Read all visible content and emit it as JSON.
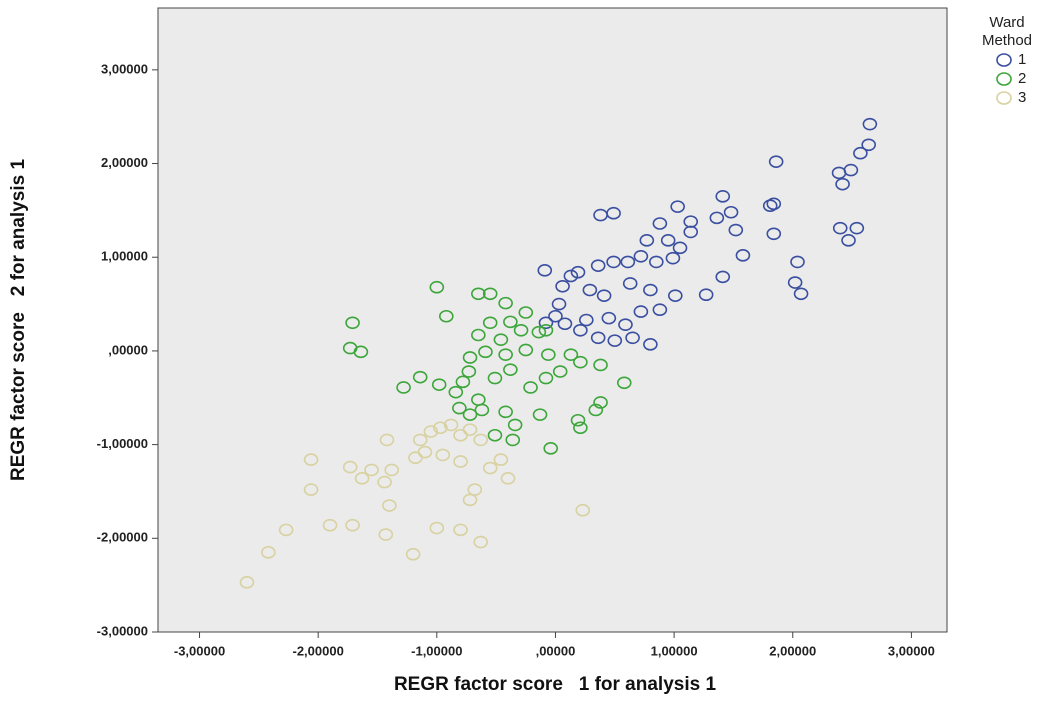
{
  "chart_data": {
    "type": "scatter",
    "x_label": "REGR factor score   1 for analysis 1",
    "y_label": "REGR factor score   2 for analysis 1",
    "legend_title": "Ward Method",
    "legend_position": "right",
    "background": "#ebebeb",
    "xlim": [
      -3.35,
      3.3
    ],
    "ylim": [
      -3.0,
      3.66
    ],
    "xticks": [
      {
        "value": -3,
        "label": "-3,00000"
      },
      {
        "value": -2,
        "label": "-2,00000"
      },
      {
        "value": -1,
        "label": "-1,00000"
      },
      {
        "value": 0,
        "label": ",00000"
      },
      {
        "value": 1,
        "label": "1,00000"
      },
      {
        "value": 2,
        "label": "2,00000"
      },
      {
        "value": 3,
        "label": "3,00000"
      }
    ],
    "yticks": [
      {
        "value": -3,
        "label": "-3,00000"
      },
      {
        "value": -2,
        "label": "-2,00000"
      },
      {
        "value": -1,
        "label": "-1,00000"
      },
      {
        "value": 0,
        "label": ",00000"
      },
      {
        "value": 1,
        "label": "1,00000"
      },
      {
        "value": 2,
        "label": "2,00000"
      },
      {
        "value": 3,
        "label": "3,00000"
      }
    ],
    "series": [
      {
        "name": "1",
        "color": "#3a4fa0",
        "x": [
          2.65,
          2.64,
          2.57,
          2.49,
          2.39,
          2.42,
          1.86,
          1.84,
          1.81,
          1.41,
          1.48,
          1.36,
          1.52,
          1.84,
          2.4,
          2.54,
          2.47,
          2.04,
          2.02,
          2.07,
          1.58,
          1.41,
          1.27,
          1.14,
          1.03,
          0.88,
          0.77,
          0.95,
          1.05,
          0.99,
          0.85,
          0.72,
          0.61,
          0.49,
          0.36,
          0.19,
          0.13,
          -0.09,
          0.38,
          0.49,
          0.63,
          0.8,
          1.01,
          0.41,
          0.29,
          0.06,
          0.03,
          0.0,
          -0.08,
          0.08,
          0.26,
          0.45,
          0.59,
          0.65,
          0.8,
          0.5,
          0.36,
          0.21,
          0.72,
          0.88,
          1.14
        ],
        "values": [
          2.42,
          2.2,
          2.11,
          1.93,
          1.9,
          1.78,
          2.02,
          1.57,
          1.55,
          1.65,
          1.48,
          1.42,
          1.29,
          1.25,
          1.31,
          1.31,
          1.18,
          0.95,
          0.73,
          0.61,
          1.02,
          0.79,
          0.6,
          1.38,
          1.54,
          1.36,
          1.18,
          1.18,
          1.1,
          0.99,
          0.95,
          1.01,
          0.95,
          0.95,
          0.91,
          0.84,
          0.8,
          0.86,
          1.45,
          1.47,
          0.72,
          0.65,
          0.59,
          0.59,
          0.65,
          0.69,
          0.5,
          0.37,
          0.3,
          0.29,
          0.33,
          0.35,
          0.28,
          0.14,
          0.07,
          0.11,
          0.14,
          0.22,
          0.42,
          0.44,
          1.27
        ]
      },
      {
        "name": "2",
        "color": "#3ca63a",
        "x": [
          -1.71,
          -1.73,
          -1.64,
          -1.0,
          -0.92,
          -0.65,
          -0.55,
          -0.42,
          -0.25,
          -0.38,
          -0.55,
          -0.65,
          -0.29,
          -0.14,
          -0.08,
          -0.46,
          -0.59,
          -0.72,
          -0.73,
          -0.42,
          -0.25,
          -0.06,
          0.13,
          0.21,
          0.38,
          0.58,
          0.04,
          -0.08,
          -0.21,
          -1.14,
          -1.28,
          -0.98,
          -0.84,
          -0.81,
          -0.65,
          -0.62,
          -0.42,
          -0.34,
          -0.36,
          -0.13,
          -0.04,
          0.19,
          0.34,
          0.38,
          0.21,
          -0.51,
          -0.72,
          -0.78,
          -0.51,
          -0.38
        ],
        "values": [
          0.3,
          0.03,
          -0.01,
          0.68,
          0.37,
          0.61,
          0.61,
          0.51,
          0.41,
          0.31,
          0.3,
          0.17,
          0.22,
          0.2,
          0.22,
          0.12,
          -0.01,
          -0.07,
          -0.22,
          -0.04,
          0.01,
          -0.04,
          -0.04,
          -0.12,
          -0.15,
          -0.34,
          -0.22,
          -0.29,
          -0.39,
          -0.28,
          -0.39,
          -0.36,
          -0.44,
          -0.61,
          -0.52,
          -0.63,
          -0.65,
          -0.79,
          -0.95,
          -0.68,
          -1.04,
          -0.74,
          -0.63,
          -0.55,
          -0.82,
          -0.9,
          -0.68,
          -0.33,
          -0.29,
          -0.2
        ]
      },
      {
        "name": "3",
        "color": "#d8d1a0",
        "x": [
          -2.6,
          -2.42,
          -2.27,
          -2.06,
          -2.06,
          -1.9,
          -1.71,
          -1.73,
          -1.63,
          -1.55,
          -1.44,
          -1.38,
          -1.42,
          -1.4,
          -1.43,
          -1.2,
          -1.18,
          -1.1,
          -0.97,
          -0.88,
          -0.8,
          -0.72,
          -0.63,
          -0.95,
          -0.8,
          -1.0,
          -0.8,
          -0.63,
          -0.72,
          -0.68,
          -0.55,
          -0.46,
          -0.4,
          0.23,
          -1.14,
          -1.05
        ],
        "values": [
          -2.47,
          -2.15,
          -1.91,
          -1.16,
          -1.48,
          -1.86,
          -1.86,
          -1.24,
          -1.36,
          -1.27,
          -1.4,
          -1.27,
          -0.95,
          -1.65,
          -1.96,
          -2.17,
          -1.14,
          -1.08,
          -0.82,
          -0.79,
          -0.9,
          -0.84,
          -0.95,
          -1.11,
          -1.18,
          -1.89,
          -1.91,
          -2.04,
          -1.59,
          -1.48,
          -1.25,
          -1.16,
          -1.36,
          -1.7,
          -0.95,
          -0.86
        ]
      }
    ]
  }
}
